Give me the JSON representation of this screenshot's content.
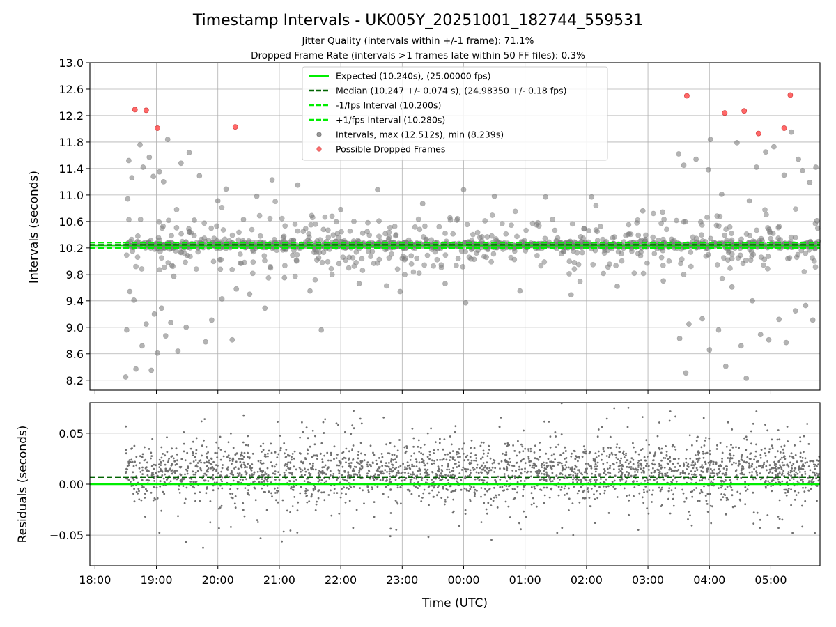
{
  "chart_data": [
    {
      "type": "scatter",
      "title": "Timestamp Intervals - UK005Y_20251001_182744_559531",
      "subtitles": [
        "Jitter Quality (intervals within +/-1 frame): 71.1%",
        "Dropped Frame Rate (intervals >1 frames late within 50 FF files): 0.3%"
      ],
      "ylabel": "Intervals (seconds)",
      "ylim": [
        8.05,
        13.0
      ],
      "yticks": [
        "8.2",
        "8.6",
        "9.0",
        "9.4",
        "9.8",
        "10.2",
        "10.6",
        "11.0",
        "11.4",
        "11.8",
        "12.2",
        "12.6",
        "13.0"
      ],
      "grid": true,
      "legend_position": "top-center",
      "reference_lines": [
        {
          "name": "Expected (10.240s), (25.00000 fps)",
          "y": 10.24,
          "style": "solid",
          "color": "#00ee00"
        },
        {
          "name": "Median (10.247 +/- 0.074 s), (24.98350 +/- 0.18 fps)",
          "y": 10.247,
          "style": "dashed",
          "color": "#006400"
        },
        {
          "name": "-1/fps Interval (10.200s)",
          "y": 10.2,
          "style": "dashed",
          "color": "#00ee00"
        },
        {
          "name": "+1/fps Interval (10.280s)",
          "y": 10.28,
          "style": "dashed",
          "color": "#00ee00"
        }
      ],
      "scatter_series": [
        {
          "name": "Intervals, max (12.512s), min (8.239s)",
          "color": "#808080"
        },
        {
          "name": "Possible Dropped Frames",
          "color": "#ff4d4d"
        }
      ],
      "dropped_frames": [
        {
          "x": "18:39",
          "y": 12.29
        },
        {
          "x": "18:50",
          "y": 12.28
        },
        {
          "x": "19:01",
          "y": 12.01
        },
        {
          "x": "20:17",
          "y": 12.03
        },
        {
          "x": "03:38",
          "y": 12.5
        },
        {
          "x": "04:15",
          "y": 12.24
        },
        {
          "x": "04:34",
          "y": 12.27
        },
        {
          "x": "04:48",
          "y": 11.93
        },
        {
          "x": "05:13",
          "y": 12.01
        },
        {
          "x": "05:19",
          "y": 12.51
        }
      ],
      "interval_points": [
        {
          "x": "18:30",
          "y": 8.25
        },
        {
          "x": "18:31",
          "y": 8.96
        },
        {
          "x": "18:32",
          "y": 10.94
        },
        {
          "x": "18:33",
          "y": 11.52
        },
        {
          "x": "18:34",
          "y": 9.54
        },
        {
          "x": "18:36",
          "y": 11.26
        },
        {
          "x": "18:38",
          "y": 9.41
        },
        {
          "x": "18:40",
          "y": 8.37
        },
        {
          "x": "18:44",
          "y": 11.76
        },
        {
          "x": "18:46",
          "y": 8.72
        },
        {
          "x": "18:47",
          "y": 11.42
        },
        {
          "x": "18:50",
          "y": 9.05
        },
        {
          "x": "18:53",
          "y": 11.57
        },
        {
          "x": "18:55",
          "y": 8.35
        },
        {
          "x": "18:57",
          "y": 11.28
        },
        {
          "x": "18:58",
          "y": 9.2
        },
        {
          "x": "19:01",
          "y": 8.61
        },
        {
          "x": "19:03",
          "y": 11.35
        },
        {
          "x": "19:05",
          "y": 9.29
        },
        {
          "x": "19:07",
          "y": 11.2
        },
        {
          "x": "19:09",
          "y": 8.87
        },
        {
          "x": "19:11",
          "y": 11.84
        },
        {
          "x": "19:14",
          "y": 9.07
        },
        {
          "x": "19:17",
          "y": 9.77
        },
        {
          "x": "19:21",
          "y": 8.64
        },
        {
          "x": "19:24",
          "y": 11.48
        },
        {
          "x": "19:29",
          "y": 9.0
        },
        {
          "x": "19:32",
          "y": 11.64
        },
        {
          "x": "19:37",
          "y": 10.62
        },
        {
          "x": "19:42",
          "y": 11.29
        },
        {
          "x": "19:48",
          "y": 8.78
        },
        {
          "x": "19:54",
          "y": 9.11
        },
        {
          "x": "20:00",
          "y": 10.91
        },
        {
          "x": "20:04",
          "y": 9.43
        },
        {
          "x": "20:08",
          "y": 11.09
        },
        {
          "x": "20:14",
          "y": 8.81
        },
        {
          "x": "20:18",
          "y": 9.58
        },
        {
          "x": "20:25",
          "y": 10.63
        },
        {
          "x": "20:31",
          "y": 9.5
        },
        {
          "x": "20:38",
          "y": 10.98
        },
        {
          "x": "20:46",
          "y": 9.29
        },
        {
          "x": "20:53",
          "y": 11.23
        },
        {
          "x": "21:05",
          "y": 9.75
        },
        {
          "x": "21:18",
          "y": 11.15
        },
        {
          "x": "21:30",
          "y": 9.55
        },
        {
          "x": "21:41",
          "y": 8.96
        },
        {
          "x": "22:00",
          "y": 10.78
        },
        {
          "x": "22:18",
          "y": 9.66
        },
        {
          "x": "22:36",
          "y": 11.08
        },
        {
          "x": "22:58",
          "y": 9.54
        },
        {
          "x": "23:20",
          "y": 10.87
        },
        {
          "x": "23:42",
          "y": 9.66
        },
        {
          "x": "00:00",
          "y": 11.08
        },
        {
          "x": "00:02",
          "y": 9.37
        },
        {
          "x": "00:30",
          "y": 10.98
        },
        {
          "x": "00:55",
          "y": 9.55
        },
        {
          "x": "01:20",
          "y": 10.97
        },
        {
          "x": "01:45",
          "y": 9.49
        },
        {
          "x": "02:05",
          "y": 10.97
        },
        {
          "x": "02:30",
          "y": 9.62
        },
        {
          "x": "02:55",
          "y": 10.76
        },
        {
          "x": "03:15",
          "y": 9.7
        },
        {
          "x": "03:30",
          "y": 11.62
        },
        {
          "x": "03:31",
          "y": 8.83
        },
        {
          "x": "03:35",
          "y": 11.45
        },
        {
          "x": "03:37",
          "y": 8.31
        },
        {
          "x": "03:40",
          "y": 9.05
        },
        {
          "x": "03:47",
          "y": 11.54
        },
        {
          "x": "03:53",
          "y": 9.13
        },
        {
          "x": "03:59",
          "y": 11.38
        },
        {
          "x": "04:00",
          "y": 8.66
        },
        {
          "x": "04:01",
          "y": 11.84
        },
        {
          "x": "04:09",
          "y": 8.96
        },
        {
          "x": "04:12",
          "y": 11.01
        },
        {
          "x": "04:16",
          "y": 8.41
        },
        {
          "x": "04:22",
          "y": 9.61
        },
        {
          "x": "04:27",
          "y": 11.79
        },
        {
          "x": "04:31",
          "y": 8.72
        },
        {
          "x": "04:36",
          "y": 8.23
        },
        {
          "x": "04:39",
          "y": 10.91
        },
        {
          "x": "04:42",
          "y": 9.4
        },
        {
          "x": "04:46",
          "y": 11.42
        },
        {
          "x": "04:50",
          "y": 8.89
        },
        {
          "x": "04:55",
          "y": 11.65
        },
        {
          "x": "04:58",
          "y": 8.81
        },
        {
          "x": "05:03",
          "y": 11.73
        },
        {
          "x": "05:08",
          "y": 9.12
        },
        {
          "x": "05:13",
          "y": 11.3
        },
        {
          "x": "05:15",
          "y": 8.77
        },
        {
          "x": "05:20",
          "y": 11.95
        },
        {
          "x": "05:24",
          "y": 9.25
        },
        {
          "x": "05:27",
          "y": 11.54
        },
        {
          "x": "05:31",
          "y": 11.37
        },
        {
          "x": "05:34",
          "y": 9.33
        },
        {
          "x": "05:38",
          "y": 11.19
        },
        {
          "x": "05:41",
          "y": 9.11
        },
        {
          "x": "05:44",
          "y": 11.42
        },
        {
          "x": "05:45",
          "y": 10.61
        }
      ]
    },
    {
      "type": "scatter",
      "ylabel": "Residuals (seconds)",
      "xlabel": "Time (UTC)",
      "ylim": [
        -0.08,
        0.08
      ],
      "yticks": [
        "−0.05",
        "0.00",
        "0.05"
      ],
      "xticks": [
        "18:00",
        "19:00",
        "20:00",
        "21:00",
        "22:00",
        "23:00",
        "00:00",
        "01:00",
        "02:00",
        "03:00",
        "04:00",
        "05:00"
      ],
      "xlim": [
        "17:55",
        "05:48"
      ],
      "grid": true,
      "reference_lines": [
        {
          "y": 0.0,
          "style": "solid",
          "color": "#00ee00"
        },
        {
          "y": 0.007,
          "style": "dashed",
          "color": "#006400"
        }
      ],
      "points_color": "#707070",
      "data_range": {
        "x_start": "18:30",
        "x_end": "05:48",
        "y_min": -0.08,
        "y_max": 0.08
      }
    }
  ],
  "legend": {
    "entries": [
      {
        "label": "Expected (10.240s), (25.00000 fps)",
        "kind": "solid-line",
        "color": "#00ee00"
      },
      {
        "label": "Median (10.247 +/- 0.074 s), (24.98350 +/- 0.18 fps)",
        "kind": "dashed-line",
        "color": "#006400"
      },
      {
        "label": "-1/fps Interval (10.200s)",
        "kind": "dashed-line",
        "color": "#00ee00"
      },
      {
        "label": "+1/fps Interval (10.280s)",
        "kind": "dashed-line",
        "color": "#00ee00"
      },
      {
        "label": "Intervals, max (12.512s), min (8.239s)",
        "kind": "dot",
        "color": "#808080"
      },
      {
        "label": "Possible Dropped Frames",
        "kind": "dot",
        "color": "#ff4d4d"
      }
    ]
  }
}
